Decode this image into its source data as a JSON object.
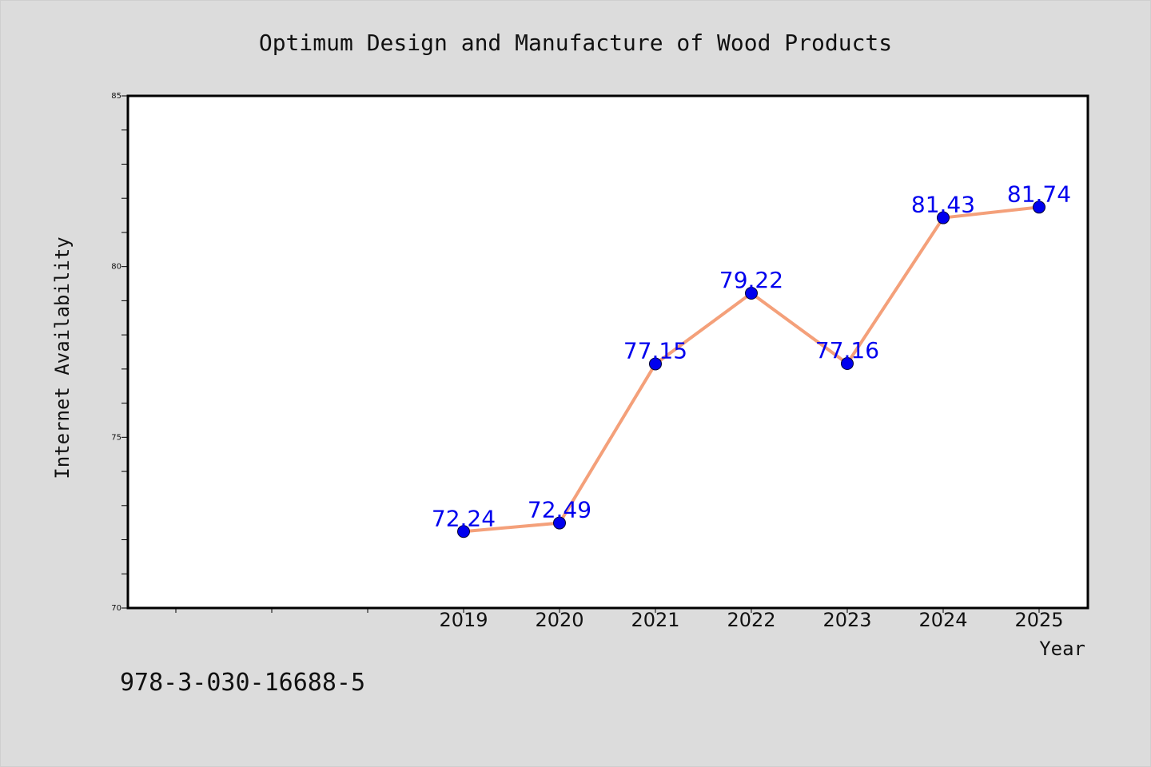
{
  "chart_data": {
    "type": "line",
    "title": "Optimum Design and Manufacture of Wood Products",
    "xlabel": "Year",
    "ylabel": "Internet Availability",
    "x": [
      "2019",
      "2020",
      "2021",
      "2022",
      "2023",
      "2024",
      "2025"
    ],
    "series": [
      {
        "values": [
          72.24,
          72.49,
          77.15,
          79.22,
          77.16,
          81.43,
          81.74
        ],
        "labels": [
          "72.24",
          "72.49",
          "77.15",
          "79.22",
          "77.16",
          "81.43",
          "81.74"
        ],
        "line_color": "#f4a07a",
        "marker_color": "#0000ee"
      }
    ],
    "ylim": [
      70,
      85
    ],
    "y_ticks": [
      "70",
      "75",
      "80",
      "85"
    ],
    "grid": false,
    "legend": "none"
  },
  "footer_text": "978-3-030-16688-5"
}
